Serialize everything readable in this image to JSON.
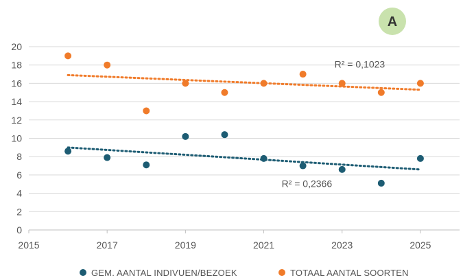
{
  "badge": {
    "label": "A",
    "fill": "#c9e2ad"
  },
  "chart_data": {
    "type": "scatter",
    "title": "",
    "xlabel": "",
    "ylabel": "",
    "xlim": [
      2015,
      2026
    ],
    "ylim": [
      0,
      20
    ],
    "x_ticks": [
      2015,
      2017,
      2019,
      2021,
      2023,
      2025
    ],
    "y_ticks": [
      0,
      2,
      4,
      6,
      8,
      10,
      12,
      14,
      16,
      18,
      20
    ],
    "grid": "horizontal",
    "legend_position": "bottom",
    "series": [
      {
        "name": "GEM. AANTAL INDIVUEN/BEZOEK",
        "color": "#1d5c73",
        "points": [
          {
            "x": 2016,
            "y": 8.6
          },
          {
            "x": 2017,
            "y": 7.9
          },
          {
            "x": 2018,
            "y": 7.1
          },
          {
            "x": 2019,
            "y": 10.2
          },
          {
            "x": 2020,
            "y": 10.4
          },
          {
            "x": 2021,
            "y": 7.8
          },
          {
            "x": 2022,
            "y": 7.0
          },
          {
            "x": 2023,
            "y": 6.6
          },
          {
            "x": 2024,
            "y": 5.1
          },
          {
            "x": 2025,
            "y": 7.8
          }
        ],
        "trendline": {
          "x": [
            2016,
            2025
          ],
          "y": [
            9.0,
            6.6
          ],
          "r2_label": "R² = 0,2366"
        }
      },
      {
        "name": "TOTAAL AANTAL SOORTEN",
        "color": "#f07b2a",
        "points": [
          {
            "x": 2016,
            "y": 19
          },
          {
            "x": 2017,
            "y": 18
          },
          {
            "x": 2018,
            "y": 13
          },
          {
            "x": 2019,
            "y": 16
          },
          {
            "x": 2020,
            "y": 15
          },
          {
            "x": 2021,
            "y": 16
          },
          {
            "x": 2022,
            "y": 17
          },
          {
            "x": 2023,
            "y": 16
          },
          {
            "x": 2024,
            "y": 15
          },
          {
            "x": 2025,
            "y": 16
          }
        ],
        "trendline": {
          "x": [
            2016,
            2025
          ],
          "y": [
            16.9,
            15.3
          ],
          "r2_label": "R² = 0,1023"
        }
      }
    ]
  }
}
